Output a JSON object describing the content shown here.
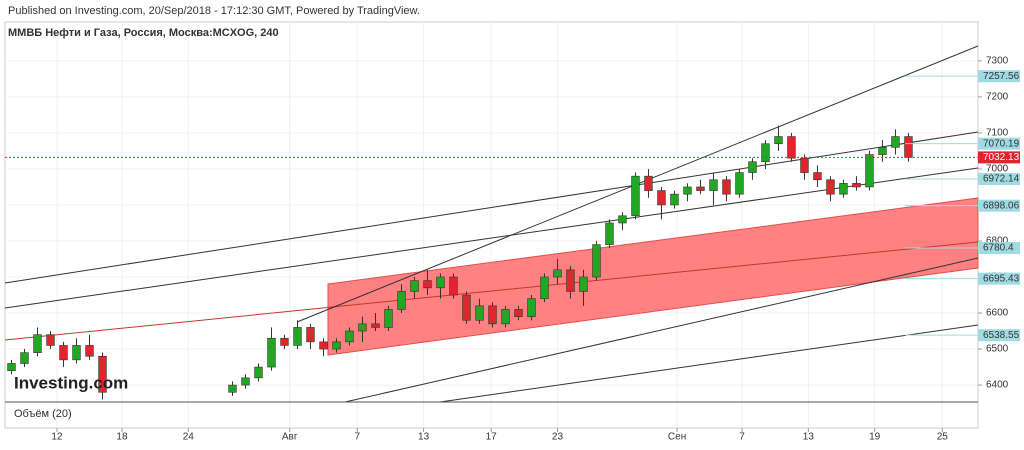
{
  "chart_data": {
    "type": "candlestick",
    "published": "Published on Investing.com, 20/Sep/2018 - 17:12:30 GMT, Powered by TradingView.",
    "title": "ММВБ Нефти и Газа, Россия, Москва:MCXOG, 240",
    "logo": "Investing.com",
    "volume_label": "Объём (20)",
    "up_color": "#22a722",
    "down_color": "#e0262c",
    "open": [
      6440,
      6460,
      6490,
      6540,
      6510,
      6470,
      6510,
      6480,
      null,
      null,
      null,
      null,
      null,
      null,
      null,
      null,
      null,
      6380,
      6400,
      6420,
      6450,
      6530,
      6510,
      6560,
      6520,
      6500,
      6520,
      6550,
      6570,
      6560,
      6610,
      6660,
      6690,
      6670,
      6700,
      6650,
      6580,
      6620,
      6570,
      6610,
      6590,
      6640,
      6700,
      6720,
      6660,
      6700,
      6790,
      6850,
      6870,
      6980,
      6940,
      6900,
      6930,
      6950,
      6940,
      6970,
      6930,
      6990,
      7020,
      7070,
      7090,
      7030,
      6990,
      6970,
      6930,
      6960,
      6950,
      7040,
      7060,
      7090
    ],
    "high": [
      6470,
      6500,
      6560,
      6550,
      6520,
      6530,
      6540,
      6490,
      null,
      null,
      null,
      null,
      null,
      null,
      null,
      null,
      null,
      6410,
      6430,
      6460,
      6560,
      6540,
      6580,
      6570,
      6530,
      6530,
      6560,
      6590,
      6600,
      6620,
      6680,
      6700,
      6720,
      6710,
      6710,
      6660,
      6640,
      6630,
      6620,
      6620,
      6650,
      6710,
      6750,
      6730,
      6720,
      6800,
      6860,
      6880,
      6990,
      7000,
      6950,
      6940,
      6960,
      6970,
      6990,
      6980,
      7000,
      7030,
      7080,
      7120,
      7100,
      7040,
      7010,
      6980,
      6970,
      6980,
      7050,
      7080,
      7110,
      7100
    ],
    "low": [
      6430,
      6450,
      6480,
      6500,
      6450,
      6460,
      6470,
      6360,
      null,
      null,
      null,
      null,
      null,
      null,
      null,
      null,
      null,
      6370,
      6390,
      6410,
      6440,
      6500,
      6500,
      6500,
      6480,
      6490,
      6510,
      6520,
      6550,
      6550,
      6600,
      6640,
      6650,
      6640,
      6640,
      6570,
      6570,
      6560,
      6560,
      6580,
      6580,
      6630,
      6680,
      6640,
      6620,
      6690,
      6780,
      6830,
      6860,
      6920,
      6860,
      6890,
      6910,
      6930,
      6900,
      6910,
      6920,
      6970,
      7000,
      7050,
      7020,
      6970,
      6950,
      6910,
      6920,
      6940,
      6940,
      7020,
      7040,
      7020
    ],
    "close": [
      6460,
      6490,
      6540,
      6510,
      6470,
      6510,
      6480,
      6380,
      null,
      null,
      null,
      null,
      null,
      null,
      null,
      null,
      null,
      6400,
      6420,
      6450,
      6530,
      6510,
      6560,
      6520,
      6500,
      6520,
      6550,
      6570,
      6560,
      6610,
      6660,
      6690,
      6670,
      6700,
      6650,
      6580,
      6620,
      6570,
      6610,
      6590,
      6640,
      6700,
      6720,
      6660,
      6700,
      6790,
      6850,
      6870,
      6980,
      6940,
      6900,
      6930,
      6950,
      6940,
      6970,
      6930,
      6990,
      7020,
      7070,
      7090,
      7030,
      6990,
      6970,
      6930,
      6960,
      6950,
      7040,
      7060,
      7090,
      7032.13
    ],
    "xlim": [
      -0.5,
      74.35
    ],
    "xticks": [
      {
        "value": 3.5,
        "label": "12"
      },
      {
        "value": 8.5,
        "label": "18"
      },
      {
        "value": 13.6,
        "label": "24"
      },
      {
        "value": 21.4,
        "label": "Авг"
      },
      {
        "value": 26.6,
        "label": "7"
      },
      {
        "value": 31.7,
        "label": "13"
      },
      {
        "value": 36.9,
        "label": "17"
      },
      {
        "value": 42,
        "label": "23"
      },
      {
        "value": 51.2,
        "label": "Сен"
      },
      {
        "value": 56.2,
        "label": "7"
      },
      {
        "value": 61.3,
        "label": "13"
      },
      {
        "value": 66.4,
        "label": "19"
      },
      {
        "value": 71.6,
        "label": "25"
      }
    ],
    "ylim": [
      6353,
      7408
    ],
    "yticks": [
      6400,
      6500,
      6600,
      6700,
      6800,
      6900,
      7000,
      7100,
      7200,
      7300
    ],
    "levels": [
      7257.56,
      7070.19,
      6972.14,
      6898.06,
      6780.4,
      6695.43,
      6538.55
    ],
    "level_color": "#9fdbe3",
    "last_price": 7032.13,
    "grid": true
  }
}
